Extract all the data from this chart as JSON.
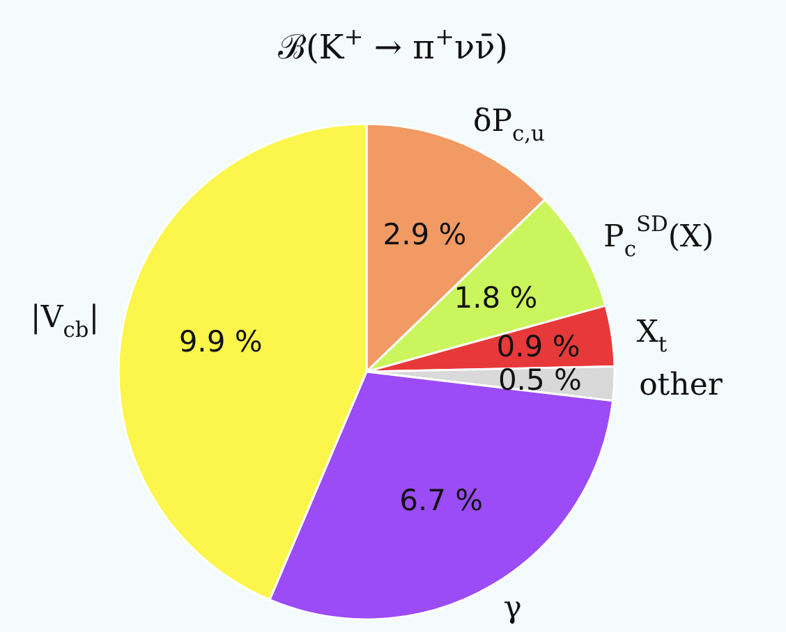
{
  "chart_data": {
    "type": "pie",
    "title": "ℬ(K$^{+}$ → π$^{+}$νν̄)",
    "categories": [
      "δP$_{c,u}$",
      "P$_{c}$$^{SD}$(X)",
      "X$_{t}$",
      "other",
      "γ",
      "|V$_{cb}$|"
    ],
    "values": [
      2.9,
      1.8,
      0.9,
      0.5,
      6.7,
      9.9
    ],
    "value_labels": [
      "2.9 %",
      "1.8 %",
      "0.9 %",
      "0.5 %",
      "6.7 %",
      "9.9 %"
    ],
    "colors": [
      "#f19a64",
      "#cbf55c",
      "#e8393a",
      "#d9d9d9",
      "#9b4cf6",
      "#fbf54c"
    ]
  }
}
